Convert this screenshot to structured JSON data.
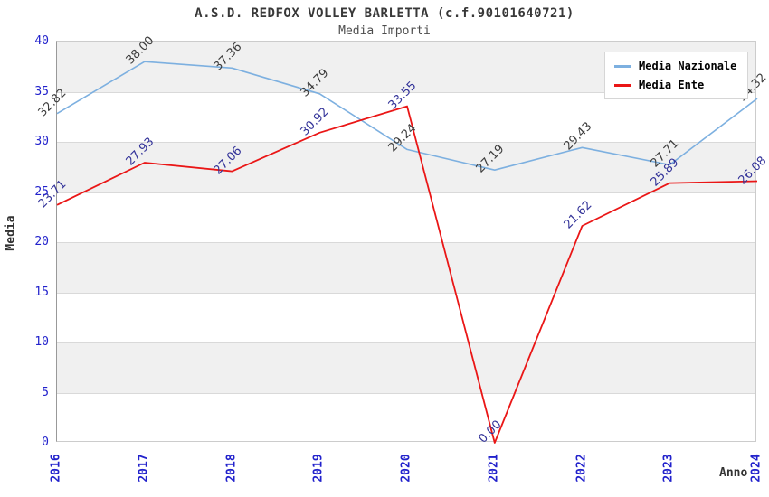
{
  "chart_data": {
    "type": "line",
    "title": "A.S.D. REDFOX VOLLEY BARLETTA (c.f.90101640721)",
    "subtitle": "Media Importi",
    "xlabel": "Anno",
    "ylabel": "Media",
    "categories": [
      "2016",
      "2017",
      "2018",
      "2019",
      "2020",
      "2021",
      "2022",
      "2023",
      "2024"
    ],
    "series": [
      {
        "name": "Media Nazionale",
        "color": "#7db0e0",
        "label_color": "#3d3d3d",
        "values": [
          32.82,
          38.0,
          37.36,
          34.79,
          29.24,
          27.19,
          29.43,
          27.71,
          34.32
        ]
      },
      {
        "name": "Media Ente",
        "color": "#ea1616",
        "label_color": "#333399",
        "values": [
          23.71,
          27.93,
          27.06,
          30.92,
          33.55,
          0.0,
          21.62,
          25.89,
          26.08
        ]
      }
    ],
    "ylim": [
      0,
      40
    ],
    "yticks": [
      0,
      5,
      10,
      15,
      20,
      25,
      30,
      35,
      40
    ],
    "grid": "horizontal",
    "band_color": "#f0f0f0",
    "gridline_color": "#d9d9d9",
    "tick_color": "#2222cc",
    "legend_position": "top-right"
  }
}
